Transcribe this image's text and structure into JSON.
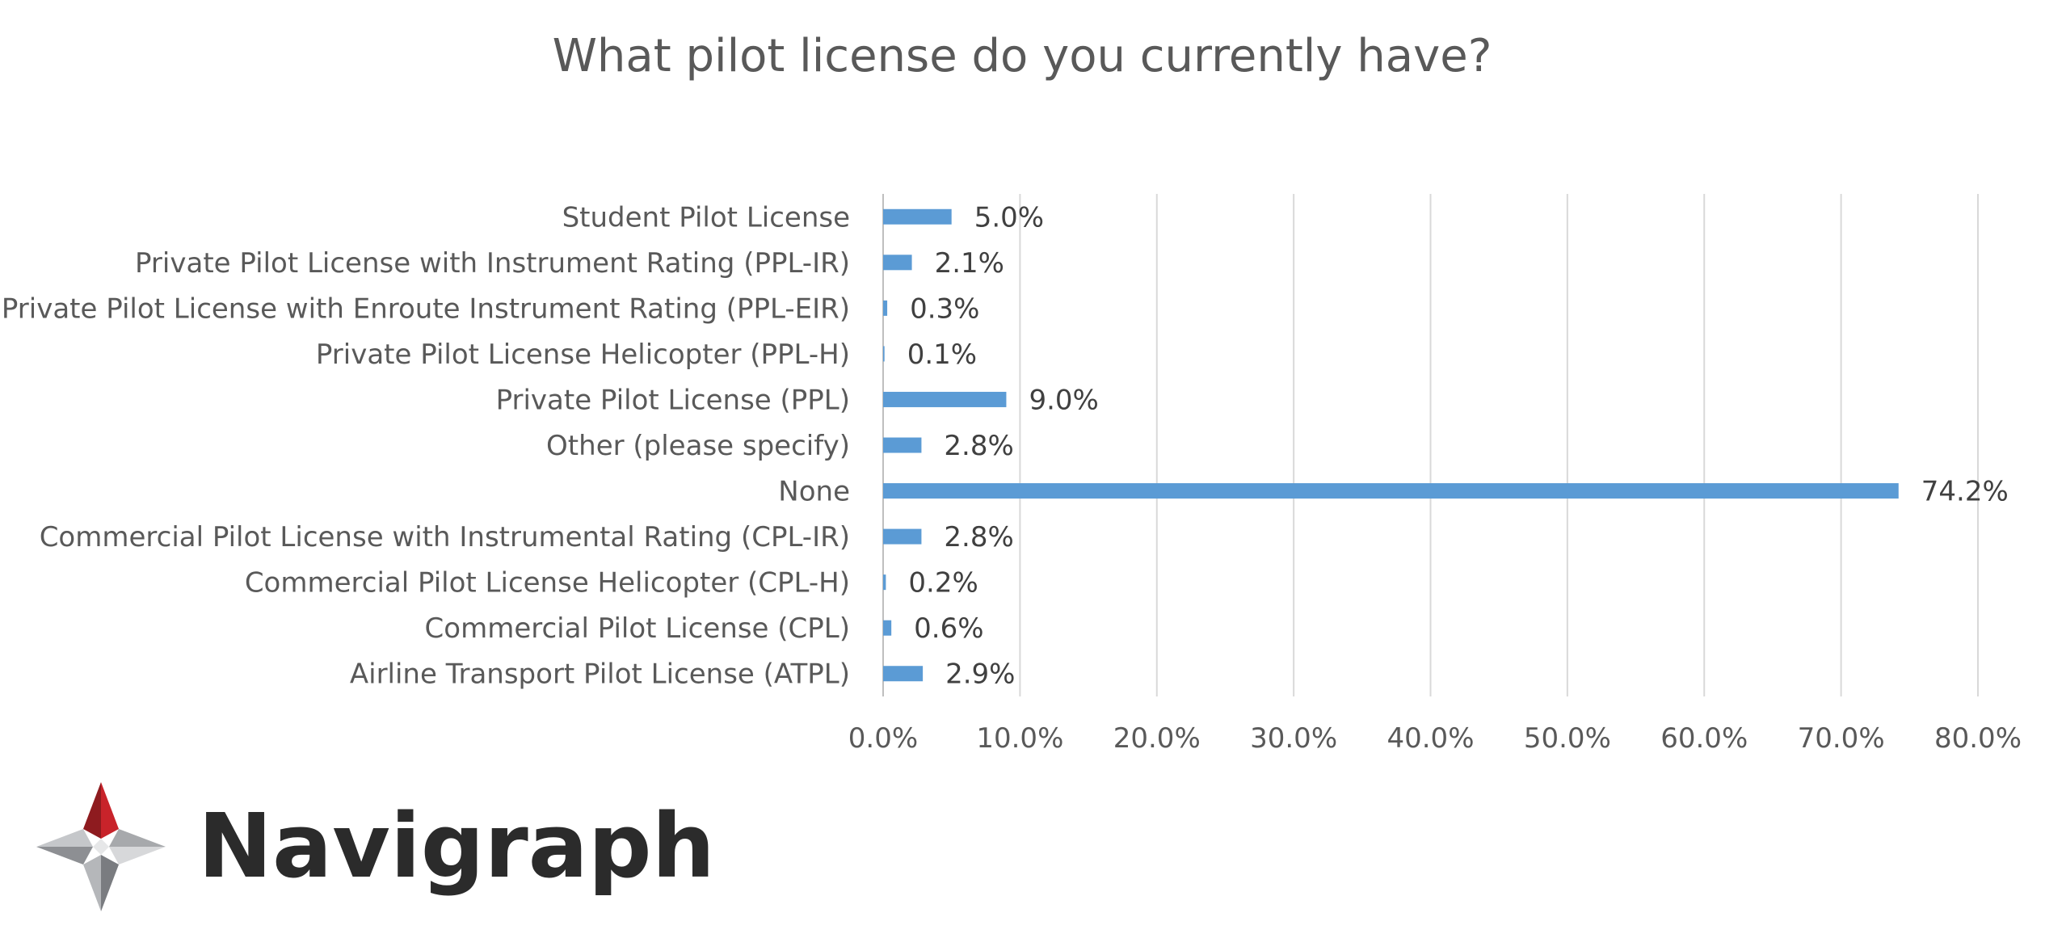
{
  "chart_data": {
    "type": "bar",
    "orientation": "horizontal",
    "title": "What pilot license do you currently have?",
    "xlabel": "",
    "ylabel": "",
    "xlim": [
      0,
      80
    ],
    "x_ticks": [
      "0.0%",
      "10.0%",
      "20.0%",
      "30.0%",
      "40.0%",
      "50.0%",
      "60.0%",
      "70.0%",
      "80.0%"
    ],
    "grid": "vertical",
    "legend": "none",
    "bar_color": "#5b9bd5",
    "categories": [
      "Student Pilot License",
      "Private Pilot License with Instrument Rating (PPL-IR)",
      "Private Pilot License with Enroute Instrument Rating (PPL-EIR)",
      "Private Pilot License Helicopter (PPL-H)",
      "Private Pilot License (PPL)",
      "Other (please specify)",
      "None",
      "Commercial Pilot License with Instrumental Rating (CPL-IR)",
      "Commercial Pilot License Helicopter (CPL-H)",
      "Commercial Pilot License (CPL)",
      "Airline Transport Pilot License (ATPL)"
    ],
    "values": [
      5.0,
      2.1,
      0.3,
      0.1,
      9.0,
      2.8,
      74.2,
      2.8,
      0.2,
      0.6,
      2.9
    ],
    "data_labels": [
      "5.0%",
      "2.1%",
      "0.3%",
      "0.1%",
      "9.0%",
      "2.8%",
      "74.2%",
      "2.8%",
      "0.2%",
      "0.6%",
      "2.9%"
    ]
  },
  "brand": {
    "name": "Navigraph",
    "logo_icon": "compass-star-icon",
    "colors": {
      "red": "#c8232a",
      "dark_red": "#8e1b1f",
      "gray": "#a7a9ac",
      "dark_gray": "#7a7c80",
      "text": "#2b2b2b"
    }
  },
  "colors": {
    "text": "#595959",
    "grid": "#d9d9d9"
  }
}
